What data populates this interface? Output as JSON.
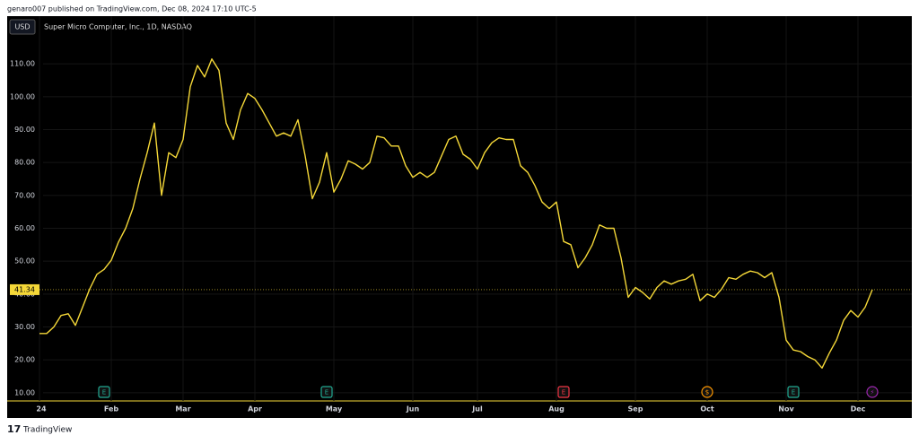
{
  "chart_data": {
    "type": "line",
    "header": "genaro007 published on TradingView.com, Dec 08, 2024 17:10 UTC-5",
    "currency": "USD",
    "title": "Super Micro Computer, Inc., 1D, NASDAQ",
    "footer": "TradingView",
    "price_label": "41.34",
    "color": "#f5d838",
    "grid": true,
    "ylim": [
      7.5,
      124.5
    ],
    "yticks": [
      {
        "value": 10,
        "label": "10.00"
      },
      {
        "value": 20,
        "label": "20.00"
      },
      {
        "value": 30,
        "label": "30.00"
      },
      {
        "value": 40,
        "label": "40.00"
      },
      {
        "value": 50,
        "label": "50.00"
      },
      {
        "value": 60,
        "label": "60.00"
      },
      {
        "value": 70,
        "label": "70.00"
      },
      {
        "value": 80,
        "label": "80.00"
      },
      {
        "value": 90,
        "label": "90.00"
      },
      {
        "value": 100,
        "label": "100.00"
      },
      {
        "value": 110,
        "label": "110.00"
      }
    ],
    "categories": [
      "24",
      null,
      null,
      null,
      null,
      null,
      null,
      null,
      null,
      null,
      "Feb",
      null,
      null,
      null,
      null,
      null,
      null,
      null,
      null,
      null,
      "Mar",
      null,
      null,
      null,
      null,
      null,
      null,
      null,
      null,
      null,
      "Apr",
      null,
      null,
      null,
      null,
      null,
      null,
      null,
      null,
      null,
      null,
      "May",
      null,
      null,
      null,
      null,
      null,
      null,
      null,
      null,
      null,
      null,
      "Jun",
      null,
      null,
      null,
      null,
      null,
      null,
      null,
      null,
      "Jul",
      null,
      null,
      null,
      null,
      null,
      null,
      null,
      null,
      null,
      null,
      "Aug",
      null,
      null,
      null,
      null,
      null,
      null,
      null,
      null,
      null,
      null,
      "Sep",
      null,
      null,
      null,
      null,
      null,
      null,
      null,
      null,
      null,
      "Oct",
      null,
      null,
      null,
      null,
      null,
      null,
      null,
      null,
      null,
      null,
      "Nov",
      null,
      null,
      null,
      null,
      null,
      null,
      null,
      null,
      null,
      "Dec",
      null,
      null
    ],
    "values": [
      28,
      28,
      30,
      33.5,
      34,
      30.5,
      36,
      41.6,
      46,
      47.5,
      50.3,
      55.8,
      60,
      66,
      75,
      83,
      92,
      70,
      83,
      81.5,
      87,
      103,
      109.5,
      106,
      111.5,
      108,
      92,
      87,
      96,
      101,
      99.5,
      96,
      92,
      88,
      89,
      88,
      93,
      82,
      69,
      74,
      83,
      71,
      75,
      80.5,
      79.5,
      78,
      80,
      88,
      87.5,
      85,
      85,
      79,
      75.5,
      77,
      75.5,
      77,
      82,
      87,
      88,
      82.5,
      81,
      78,
      83,
      86,
      87.5,
      87,
      87,
      79,
      77,
      73,
      68,
      66,
      68,
      56,
      55,
      48,
      51,
      55,
      61,
      60,
      60,
      51,
      39,
      42,
      40.5,
      38.5,
      42,
      44,
      43,
      44,
      44.5,
      46,
      38,
      40,
      39,
      41.5,
      45,
      44.5,
      46,
      47,
      46.5,
      45,
      46.5,
      39,
      26,
      23,
      22.5,
      21,
      20,
      17.5,
      22,
      26,
      32,
      35,
      33,
      36,
      41.34
    ],
    "events": [
      {
        "label": "E",
        "color": "#22ab94",
        "at": 9
      },
      {
        "label": "E",
        "color": "#22ab94",
        "at": 40
      },
      {
        "label": "E",
        "color": "#f23645",
        "at": 73
      },
      {
        "label": "$",
        "color": "#ff9800",
        "at": 93
      },
      {
        "label": "E",
        "color": "#22ab94",
        "at": 105
      },
      {
        "label": "⚡",
        "color": "#9c27b0",
        "at": 116
      }
    ]
  }
}
